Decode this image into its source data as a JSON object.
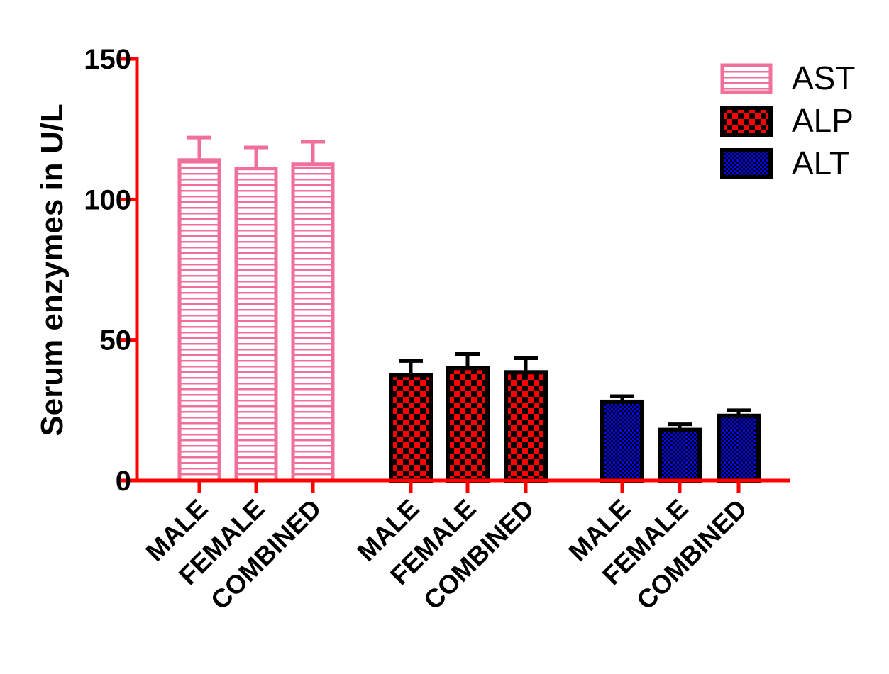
{
  "chart_data": {
    "type": "bar",
    "ylabel": "Serum enzymes in U/L",
    "ylim": [
      0,
      150
    ],
    "yticks": [
      0,
      50,
      100,
      150
    ],
    "grid": false,
    "legend_position": "top-right",
    "axis_color": "#ff0000",
    "groups": [
      {
        "series": "AST",
        "color": "#f0709a",
        "pattern": "horizontal-stripes",
        "bars": [
          {
            "category": "MALE",
            "value": 114,
            "error": 8
          },
          {
            "category": "FEMALE",
            "value": 111,
            "error": 7.5
          },
          {
            "category": "COMBINED",
            "value": 112.5,
            "error": 8
          }
        ]
      },
      {
        "series": "ALP",
        "color": "#ff0000",
        "pattern": "checkerboard",
        "bars": [
          {
            "category": "MALE",
            "value": 37.5,
            "error": 5
          },
          {
            "category": "FEMALE",
            "value": 40,
            "error": 5
          },
          {
            "category": "COMBINED",
            "value": 38.5,
            "error": 5
          }
        ]
      },
      {
        "series": "ALT",
        "color": "#0000ff",
        "pattern": "fine-checkerboard",
        "bars": [
          {
            "category": "MALE",
            "value": 28,
            "error": 2
          },
          {
            "category": "FEMALE",
            "value": 18,
            "error": 2
          },
          {
            "category": "COMBINED",
            "value": 23,
            "error": 2
          }
        ]
      }
    ],
    "legend": [
      "AST",
      "ALP",
      "ALT"
    ]
  }
}
